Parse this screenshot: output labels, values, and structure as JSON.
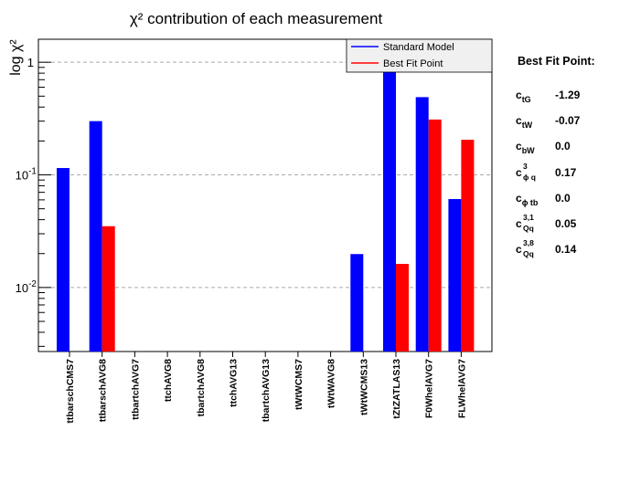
{
  "chart_data": {
    "type": "bar",
    "title": "χ² contribution of each measurement",
    "ylabel": "log χ²",
    "yscale": "log",
    "ylim": [
      0.0027,
      1.6
    ],
    "yticks": [
      {
        "value": 0.01,
        "base": "10",
        "exp": "-2"
      },
      {
        "value": 0.1,
        "base": "10",
        "exp": "-1"
      },
      {
        "value": 1,
        "label": "1"
      }
    ],
    "grid": "horizontal dashed at decades",
    "legend_position": "top-right",
    "categories": [
      "ttbarschCMS7",
      "ttbarschAVG8",
      "ttbartchAVG7",
      "ttchAVG8",
      "tbartchAVG8",
      "ttchAVG13",
      "tbartchAVG13",
      "tWtWCMS7",
      "tWtWAVG8",
      "tWtWCMS13",
      "tZtZATLAS13",
      "F0WhelAVG7",
      "FLWhelAVG7"
    ],
    "series": [
      {
        "name": "Standard Model",
        "color": "#0000ff",
        "values": [
          0.115,
          0.3,
          null,
          null,
          null,
          null,
          null,
          null,
          null,
          0.0198,
          0.95,
          0.49,
          0.061
        ]
      },
      {
        "name": "Best Fit Point",
        "color": "#ff0000",
        "values": [
          null,
          0.035,
          null,
          null,
          null,
          null,
          null,
          null,
          null,
          null,
          0.0162,
          0.31,
          0.205
        ]
      }
    ]
  },
  "best_fit": {
    "title": "Best Fit Point:",
    "params": [
      {
        "base": "c",
        "sub": "tG",
        "sup": "",
        "value": "-1.29"
      },
      {
        "base": "c",
        "sub": "tW",
        "sup": "",
        "value": "-0.07"
      },
      {
        "base": "c",
        "sub": "bW",
        "sup": "",
        "value": "0.0"
      },
      {
        "base": "c",
        "sub": "ϕ q",
        "sup": "3",
        "value": "0.17"
      },
      {
        "base": "c",
        "sub": "ϕ tb",
        "sup": "",
        "value": "0.0"
      },
      {
        "base": "c",
        "sub": "Qq",
        "sup": "3,1",
        "value": "0.05"
      },
      {
        "base": "c",
        "sub": "Qq",
        "sup": "3,8",
        "value": "0.14"
      }
    ]
  }
}
